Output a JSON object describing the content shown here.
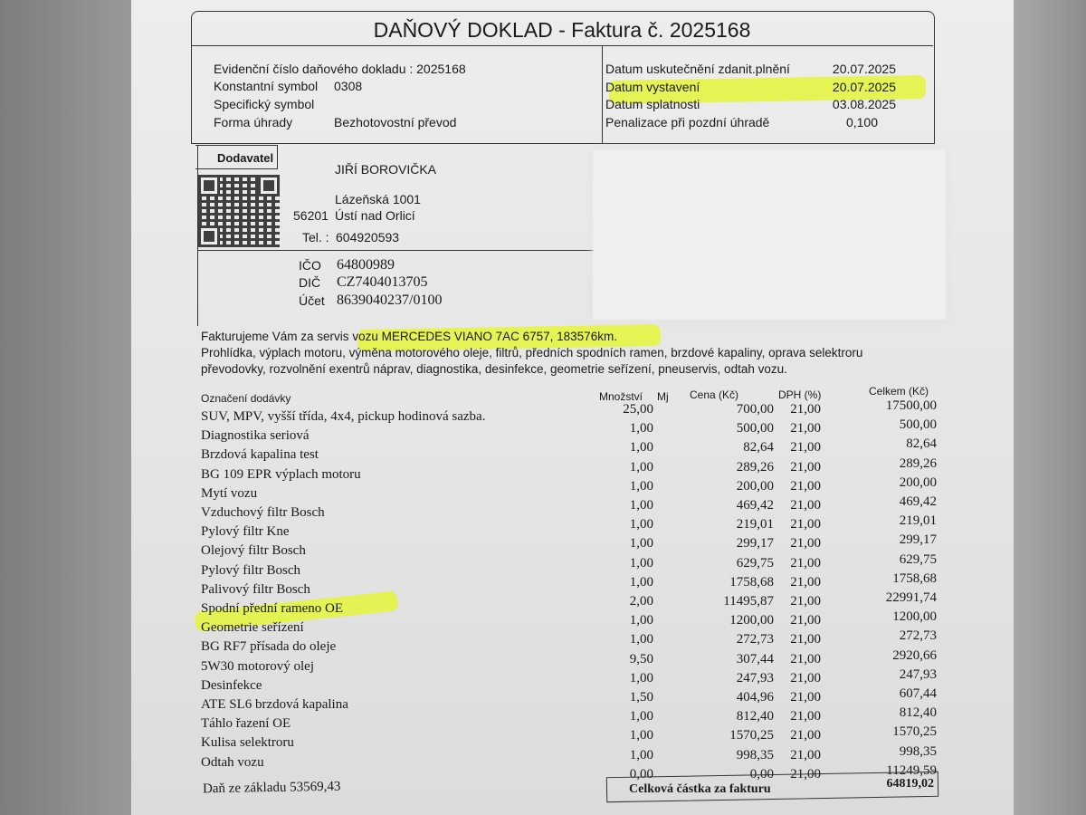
{
  "title": "DAŇOVÝ DOKLAD - Faktura č. 2025168",
  "info": {
    "evidencni": "Evidenční číslo daňového dokladu : 2025168",
    "konst_label": "Konstantní symbol",
    "konst_value": "0308",
    "spec_label": "Specifický symbol",
    "forma_label": "Forma úhrady",
    "forma_value": "Bezhotovostní převod"
  },
  "dates": [
    {
      "label": "Datum uskutečnění zdanit.plnění",
      "value": "20.07.2025"
    },
    {
      "label": "Datum vystavení",
      "value": "20.07.2025"
    },
    {
      "label": "Datum splatnosti",
      "value": "03.08.2025"
    },
    {
      "label": "Penalizace při pozdní úhradě",
      "value": "0,100"
    }
  ],
  "supplier": {
    "heading": "Dodavatel",
    "name": "JIŘÍ BOROVIČKA",
    "street": "Lázeňská 1001",
    "zip": "56201",
    "city": "Ústí nad Orlicí",
    "tel_label": "Tel. :",
    "tel": "604920593",
    "ico_label": "IČO",
    "ico": "64800989",
    "dic_label": "DIČ",
    "dic": "CZ7404013705",
    "ucet_label": "Účet",
    "ucet": "8639040237/0100"
  },
  "description": {
    "line1a": "Fakturujeme Vám za servis ",
    "line1b": "vozu MERCEDES VIANO 7AC 6757, 183576km.",
    "line2": "Prohlídka, výplach motoru, výměna motorového oleje, filtrů, předních spodních ramen, brzdové kapaliny, oprava selektroru",
    "line3": "převodovky, rozvolnění exentrů náprav, diagnostika, desinfekce, geometrie seřízení, pneuservis, odtah vozu."
  },
  "table": {
    "headers": {
      "item": "Označení dodávky",
      "qty": "Množství",
      "unit": "Mj",
      "price": "Cena (Kč)",
      "vat": "DPH (%)",
      "total": "Celkem (Kč)"
    },
    "rows": [
      {
        "item": "SUV, MPV, vyšší třída, 4x4, pickup hodinová sazba.",
        "qty": "25,00",
        "price": "700,00",
        "vat": "21,00",
        "total": "17500,00"
      },
      {
        "item": "Diagnostika seriová",
        "qty": "1,00",
        "price": "500,00",
        "vat": "21,00",
        "total": "500,00"
      },
      {
        "item": "Brzdová kapalina test",
        "qty": "1,00",
        "price": "82,64",
        "vat": "21,00",
        "total": "82,64"
      },
      {
        "item": "BG 109 EPR výplach motoru",
        "qty": "1,00",
        "price": "289,26",
        "vat": "21,00",
        "total": "289,26"
      },
      {
        "item": "Mytí vozu",
        "qty": "1,00",
        "price": "200,00",
        "vat": "21,00",
        "total": "200,00"
      },
      {
        "item": "Vzduchový filtr Bosch",
        "qty": "1,00",
        "price": "469,42",
        "vat": "21,00",
        "total": "469,42"
      },
      {
        "item": "Pylový filtr Kne",
        "qty": "1,00",
        "price": "219,01",
        "vat": "21,00",
        "total": "219,01"
      },
      {
        "item": "Olejový filtr Bosch",
        "qty": "1,00",
        "price": "299,17",
        "vat": "21,00",
        "total": "299,17"
      },
      {
        "item": "Pylový filtr Bosch",
        "qty": "1,00",
        "price": "629,75",
        "vat": "21,00",
        "total": "629,75"
      },
      {
        "item": "Palivový filtr Bosch",
        "qty": "1,00",
        "price": "1758,68",
        "vat": "21,00",
        "total": "1758,68"
      },
      {
        "item": "Spodní přední rameno OE",
        "qty": "2,00",
        "price": "11495,87",
        "vat": "21,00",
        "total": "22991,74"
      },
      {
        "item": "Geometrie seřízení",
        "qty": "1,00",
        "price": "1200,00",
        "vat": "21,00",
        "total": "1200,00"
      },
      {
        "item": "BG RF7 přísada do oleje",
        "qty": "1,00",
        "price": "272,73",
        "vat": "21,00",
        "total": "272,73"
      },
      {
        "item": "5W30 motorový olej",
        "qty": "9,50",
        "price": "307,44",
        "vat": "21,00",
        "total": "2920,66"
      },
      {
        "item": "Desinfekce",
        "qty": "1,00",
        "price": "247,93",
        "vat": "21,00",
        "total": "247,93"
      },
      {
        "item": "ATE SL6 brzdová kapalina",
        "qty": "1,50",
        "price": "404,96",
        "vat": "21,00",
        "total": "607,44"
      },
      {
        "item": "Táhlo řazení OE",
        "qty": "1,00",
        "price": "812,40",
        "vat": "21,00",
        "total": "812,40"
      },
      {
        "item": "Kulisa selektroru",
        "qty": "1,00",
        "price": "1570,25",
        "vat": "21,00",
        "total": "1570,25"
      },
      {
        "item": "Odtah vozu",
        "qty": "1,00",
        "price": "998,35",
        "vat": "21,00",
        "total": "998,35"
      },
      {
        "item": "",
        "qty": "0,00",
        "price": "0,00",
        "vat": "21,00",
        "total": "11249,59"
      }
    ],
    "tax_note": "Daň ze základu 53569,43",
    "total_label": "Celková částka za fakturu",
    "total_value": "64819,02"
  },
  "colors": {
    "highlight": "#e4f53a"
  }
}
